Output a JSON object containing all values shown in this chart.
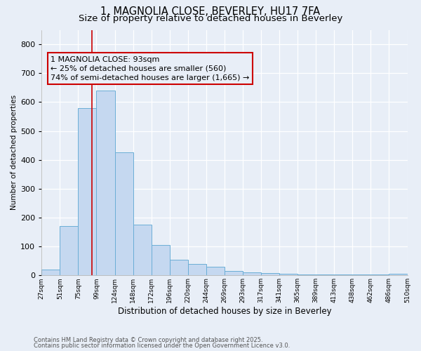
{
  "title1": "1, MAGNOLIA CLOSE, BEVERLEY, HU17 7FA",
  "title2": "Size of property relative to detached houses in Beverley",
  "xlabel": "Distribution of detached houses by size in Beverley",
  "ylabel": "Number of detached properties",
  "bin_labels": [
    "27sqm",
    "51sqm",
    "75sqm",
    "99sqm",
    "124sqm",
    "148sqm",
    "172sqm",
    "196sqm",
    "220sqm",
    "244sqm",
    "269sqm",
    "293sqm",
    "317sqm",
    "341sqm",
    "365sqm",
    "389sqm",
    "413sqm",
    "438sqm",
    "462sqm",
    "486sqm",
    "510sqm"
  ],
  "bar_heights": [
    20,
    170,
    580,
    640,
    425,
    175,
    105,
    55,
    40,
    30,
    15,
    10,
    8,
    6,
    4,
    2,
    2,
    2,
    2,
    5
  ],
  "bar_color": "#c5d8f0",
  "bar_edge_color": "#6baed6",
  "ylim": [
    0,
    850
  ],
  "yticks": [
    0,
    100,
    200,
    300,
    400,
    500,
    600,
    700,
    800
  ],
  "red_line_x": 2.75,
  "annotation_text": "1 MAGNOLIA CLOSE: 93sqm\n← 25% of detached houses are smaller (560)\n74% of semi-detached houses are larger (1,665) →",
  "annotation_box_color": "#cc0000",
  "footnote1": "Contains HM Land Registry data © Crown copyright and database right 2025.",
  "footnote2": "Contains public sector information licensed under the Open Government Licence v3.0.",
  "background_color": "#e8eef7",
  "grid_color": "#ffffff",
  "title_fontsize": 10.5,
  "subtitle_fontsize": 9.5
}
